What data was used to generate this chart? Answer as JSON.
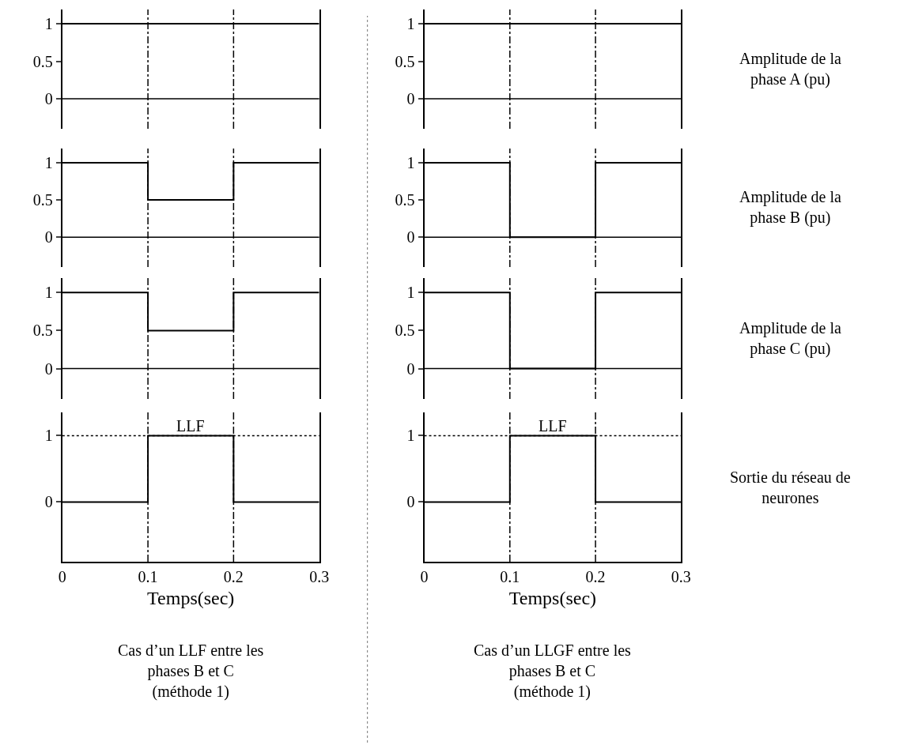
{
  "chart_data": [
    {
      "type": "step",
      "x": [
        0,
        0.1,
        0.2,
        0.3
      ],
      "series": [
        {
          "color": "#000000",
          "values": [
            1,
            1,
            1,
            1
          ]
        }
      ],
      "xlim": [
        0,
        0.3
      ],
      "ylim": [
        -0.4,
        1.19
      ],
      "yticks": [
        0,
        0.5,
        1
      ],
      "tick_labels": "y",
      "grid": false,
      "line_style": "solid",
      "ref_lines": [
        {
          "axis": "x",
          "value": 0.1,
          "line_style": "dashed"
        },
        {
          "axis": "x",
          "value": 0.2,
          "line_style": "dashed"
        },
        {
          "axis": "y",
          "value": 0,
          "line_style": "solid"
        }
      ]
    },
    {
      "type": "step",
      "x": [
        0,
        0.1,
        0.2,
        0.3
      ],
      "series": [
        {
          "color": "#000000",
          "values": [
            1,
            1,
            1,
            1
          ]
        }
      ],
      "xlim": [
        0,
        0.3
      ],
      "ylim": [
        -0.4,
        1.19
      ],
      "yticks": [
        0,
        0.5,
        1
      ],
      "tick_labels": "y",
      "grid": false,
      "line_style": "solid",
      "ref_lines": [
        {
          "axis": "x",
          "value": 0.1,
          "line_style": "dashed"
        },
        {
          "axis": "x",
          "value": 0.2,
          "line_style": "dashed"
        },
        {
          "axis": "y",
          "value": 0,
          "line_style": "solid"
        }
      ],
      "annotations": [
        "Amplitude de la\nphase A (pu)"
      ]
    },
    {
      "type": "step",
      "x": [
        0,
        0.1,
        0.2,
        0.3
      ],
      "series": [
        {
          "color": "#000000",
          "values": [
            1,
            0.5,
            1,
            1
          ]
        }
      ],
      "xlim": [
        0,
        0.3
      ],
      "ylim": [
        -0.4,
        1.19
      ],
      "yticks": [
        0,
        0.5,
        1
      ],
      "tick_labels": "y",
      "grid": false,
      "line_style": "solid",
      "ref_lines": [
        {
          "axis": "x",
          "value": 0.1,
          "line_style": "dashed"
        },
        {
          "axis": "x",
          "value": 0.2,
          "line_style": "dashed"
        },
        {
          "axis": "y",
          "value": 0,
          "line_style": "solid"
        }
      ]
    },
    {
      "type": "step",
      "x": [
        0,
        0.1,
        0.2,
        0.3
      ],
      "series": [
        {
          "color": "#000000",
          "values": [
            1,
            0,
            1,
            1
          ]
        }
      ],
      "xlim": [
        0,
        0.3
      ],
      "ylim": [
        -0.4,
        1.19
      ],
      "yticks": [
        0,
        0.5,
        1
      ],
      "tick_labels": "y",
      "grid": false,
      "line_style": "solid",
      "ref_lines": [
        {
          "axis": "x",
          "value": 0.1,
          "line_style": "dashed"
        },
        {
          "axis": "x",
          "value": 0.2,
          "line_style": "dashed"
        },
        {
          "axis": "y",
          "value": 0,
          "line_style": "solid"
        }
      ],
      "annotations": [
        "Amplitude de la\nphase B (pu)"
      ]
    },
    {
      "type": "step",
      "x": [
        0,
        0.1,
        0.2,
        0.3
      ],
      "series": [
        {
          "color": "#000000",
          "values": [
            1,
            0.5,
            1,
            1
          ]
        }
      ],
      "xlim": [
        0,
        0.3
      ],
      "ylim": [
        -0.4,
        1.19
      ],
      "yticks": [
        0,
        0.5,
        1
      ],
      "tick_labels": "y",
      "grid": false,
      "line_style": "solid",
      "ref_lines": [
        {
          "axis": "x",
          "value": 0.1,
          "line_style": "dashed"
        },
        {
          "axis": "x",
          "value": 0.2,
          "line_style": "dashed"
        },
        {
          "axis": "y",
          "value": 0,
          "line_style": "solid"
        }
      ]
    },
    {
      "type": "step",
      "x": [
        0,
        0.1,
        0.2,
        0.3
      ],
      "series": [
        {
          "color": "#000000",
          "values": [
            1,
            0,
            1,
            1
          ]
        }
      ],
      "xlim": [
        0,
        0.3
      ],
      "ylim": [
        -0.4,
        1.19
      ],
      "yticks": [
        0,
        0.5,
        1
      ],
      "tick_labels": "y",
      "grid": false,
      "line_style": "solid",
      "ref_lines": [
        {
          "axis": "x",
          "value": 0.1,
          "line_style": "dashed"
        },
        {
          "axis": "x",
          "value": 0.2,
          "line_style": "dashed"
        },
        {
          "axis": "y",
          "value": 0,
          "line_style": "solid"
        }
      ],
      "annotations": [
        "Amplitude de la\nphase C (pu)"
      ]
    },
    {
      "type": "step",
      "x": [
        0,
        0.1,
        0.2,
        0.3
      ],
      "series": [
        {
          "color": "#000000",
          "values": [
            0,
            1,
            0,
            0
          ]
        }
      ],
      "xlim": [
        0,
        0.3
      ],
      "ylim": [
        -0.9,
        1.35
      ],
      "xticks": [
        0,
        0.1,
        0.2,
        0.3
      ],
      "yticks": [
        0,
        1
      ],
      "xlabel": "Temps(sec)",
      "grid": false,
      "line_style": "solid",
      "ref_lines": [
        {
          "axis": "x",
          "value": 0.1,
          "line_style": "dashed"
        },
        {
          "axis": "x",
          "value": 0.2,
          "line_style": "dashed"
        },
        {
          "axis": "y",
          "value": 1,
          "line_style": "dotted"
        }
      ],
      "annotations": [
        "LLF",
        "Cas d’un LLF entre les\nphases B et C\n(méthode 1)"
      ]
    },
    {
      "type": "step",
      "x": [
        0,
        0.1,
        0.2,
        0.3
      ],
      "series": [
        {
          "color": "#000000",
          "values": [
            0,
            1,
            0,
            0
          ]
        }
      ],
      "xlim": [
        0,
        0.3
      ],
      "ylim": [
        -0.9,
        1.35
      ],
      "xticks": [
        0,
        0.1,
        0.2,
        0.3
      ],
      "yticks": [
        0,
        1
      ],
      "xlabel": "Temps(sec)",
      "grid": false,
      "line_style": "solid",
      "ref_lines": [
        {
          "axis": "x",
          "value": 0.1,
          "line_style": "dashed"
        },
        {
          "axis": "x",
          "value": 0.2,
          "line_style": "dashed"
        },
        {
          "axis": "y",
          "value": 1,
          "line_style": "dotted"
        }
      ],
      "annotations": [
        "Sortie du réseau de\nneurones",
        "LLF",
        "Cas d’un LLGF entre les\nphases B et C\n(méthode 1)"
      ]
    }
  ]
}
